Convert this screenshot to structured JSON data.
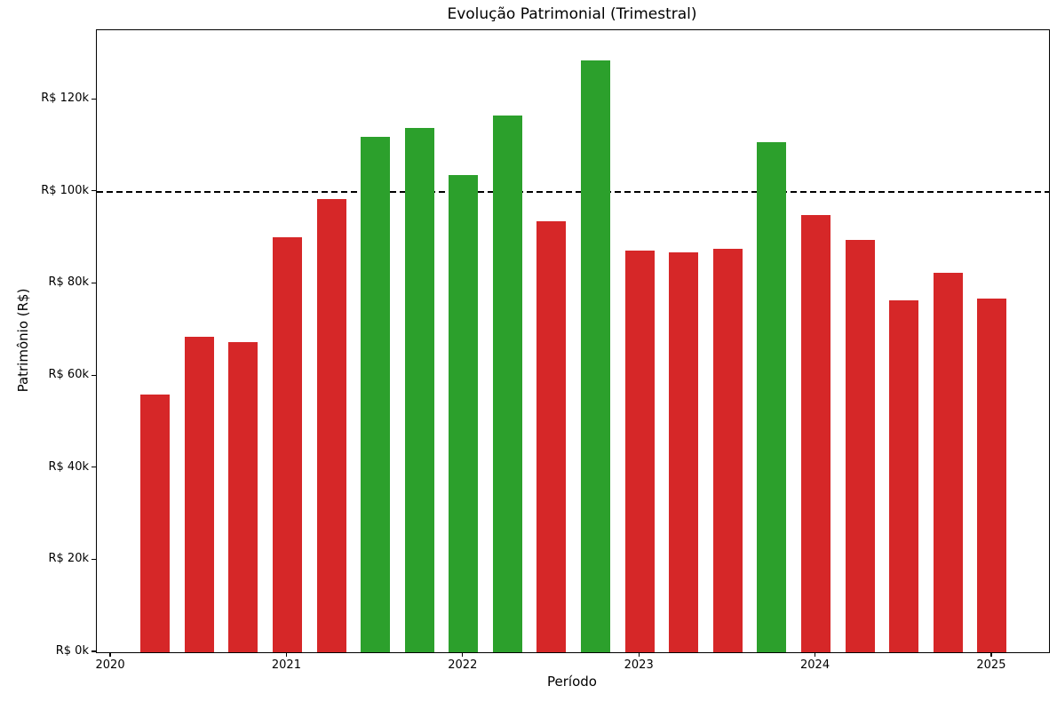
{
  "chart_data": {
    "type": "bar",
    "title": "Evolução Patrimonial (Trimestral)",
    "xlabel": "Período",
    "ylabel": "Patrimônio (R$)",
    "unit": "R$ thousands",
    "categories": [
      "2020-Q2",
      "2020-Q3",
      "2020-Q4",
      "2021-Q1",
      "2021-Q2",
      "2021-Q3",
      "2021-Q4",
      "2022-Q1",
      "2022-Q2",
      "2022-Q3",
      "2022-Q4",
      "2023-Q1",
      "2023-Q2",
      "2023-Q3",
      "2023-Q4",
      "2024-Q1",
      "2024-Q2",
      "2024-Q3",
      "2024-Q4",
      "2025-Q1"
    ],
    "x": [
      2020.25,
      2020.5,
      2020.75,
      2021.0,
      2021.25,
      2021.5,
      2021.75,
      2022.0,
      2022.25,
      2022.5,
      2022.75,
      2023.0,
      2023.25,
      2023.5,
      2023.75,
      2024.0,
      2024.25,
      2024.5,
      2024.75,
      2025.0
    ],
    "values": [
      55.9,
      68.5,
      67.3,
      90.1,
      98.4,
      111.9,
      113.8,
      103.6,
      116.5,
      93.6,
      128.5,
      87.2,
      86.8,
      87.6,
      110.7,
      94.9,
      89.5,
      76.4,
      82.4,
      76.8
    ],
    "threshold": 100,
    "color_rule": "green if value >= 100k else red",
    "colors": {
      "above": "#2ca02c",
      "below": "#d62728",
      "threshold_line": "#000000",
      "background": "#ffffff"
    },
    "xlim": [
      2019.919,
      2025.323
    ],
    "ylim": [
      0,
      135.1
    ],
    "yticks": [
      {
        "value": 0,
        "label": "R$ 0k"
      },
      {
        "value": 20,
        "label": "R$ 20k"
      },
      {
        "value": 40,
        "label": "R$ 40k"
      },
      {
        "value": 60,
        "label": "R$ 60k"
      },
      {
        "value": 80,
        "label": "R$ 80k"
      },
      {
        "value": 100,
        "label": "R$ 100k"
      },
      {
        "value": 120,
        "label": "R$ 120k"
      }
    ],
    "xticks": [
      {
        "value": 2020,
        "label": "2020"
      },
      {
        "value": 2021,
        "label": "2021"
      },
      {
        "value": 2022,
        "label": "2022"
      },
      {
        "value": 2023,
        "label": "2023"
      },
      {
        "value": 2024,
        "label": "2024"
      },
      {
        "value": 2025,
        "label": "2025"
      }
    ],
    "grid": false,
    "legend": "none",
    "threshold_line_style": "dashed"
  }
}
